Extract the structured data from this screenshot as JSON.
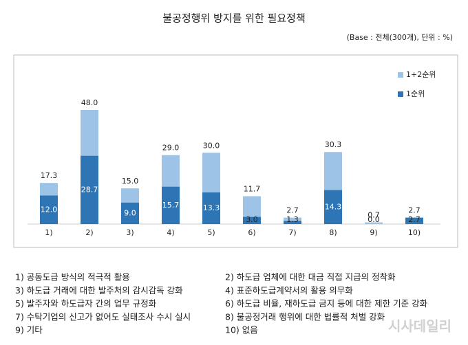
{
  "chart_data": {
    "type": "bar",
    "overlap": true,
    "title": "불공정행위 방지를 위한 필요정책",
    "subtitle": "(Base : 전체(300개), 단위 : %)",
    "categories": [
      "1)",
      "2)",
      "3)",
      "4)",
      "5)",
      "6)",
      "7)",
      "8)",
      "9)",
      "10)"
    ],
    "series": [
      {
        "name": "1+2순위",
        "color": "#9dc3e6",
        "values": [
          17.3,
          48.0,
          15.0,
          29.0,
          30.0,
          11.7,
          2.7,
          30.3,
          0.7,
          2.7
        ],
        "value_labels": [
          "17.3",
          "48.0",
          "15.0",
          "29.0",
          "30.0",
          "11.7",
          "2.7",
          "30.3",
          "0.7",
          "2.7"
        ]
      },
      {
        "name": "1순위",
        "color": "#2e75b6",
        "values": [
          12.0,
          28.7,
          9.0,
          15.7,
          13.3,
          3.0,
          1.3,
          14.3,
          0.0,
          2.7
        ],
        "value_labels": [
          "12.0",
          "28.7",
          "9.0",
          "15.7",
          "13.3",
          "3.0",
          "1.3",
          "14.3",
          "0.0",
          "2.7"
        ]
      }
    ],
    "notes": [
      "1) 공동도급 방식의 적극적 활용",
      "2) 하도급 업체에 대한 대금 직접 지급의 정착화",
      "3) 하도급 거래에 대한 발주처의 감시감독 강화",
      "4) 표준하도급계약서의 활용 의무화",
      "5) 발주자와 하도급자 간의 업무 규정화",
      "6) 하도급 비율, 재하도급 금지 등에 대한 제한 기준 강화",
      "7) 수탁기업의 신고가 없어도 실태조사 수시 실시",
      "8) 불공정거래 행위에 대한 법률적 처벌 강화",
      "9) 기타",
      "10) 없음"
    ],
    "watermark": "시사데일리"
  }
}
